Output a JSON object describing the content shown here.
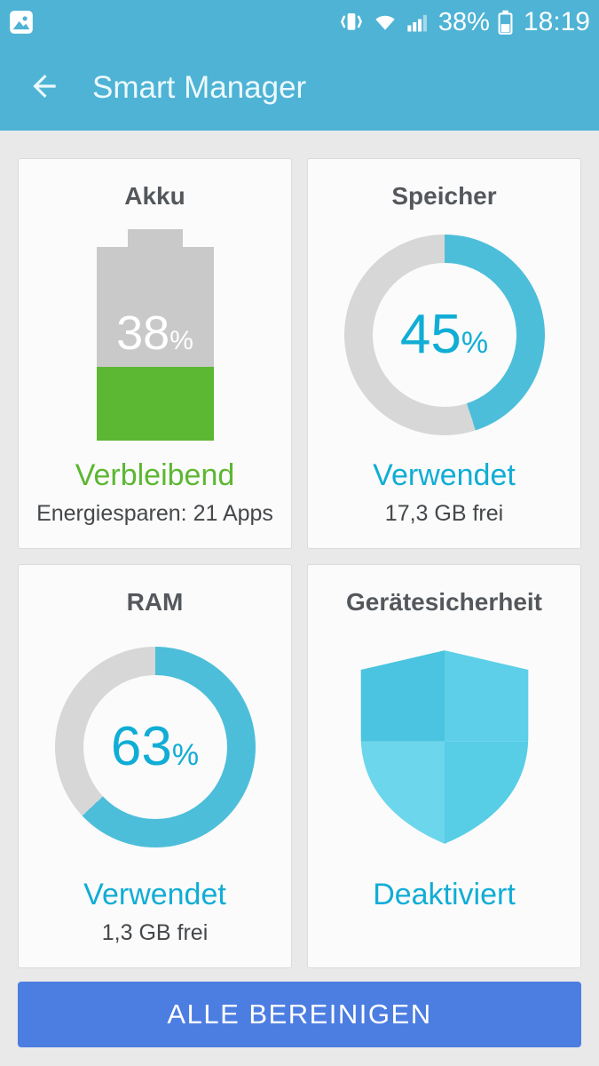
{
  "status_bar": {
    "left_icons": [
      "screenshot-icon"
    ],
    "right_icons": [
      "vibrate-icon",
      "wifi-icon",
      "signal-icon",
      "battery-icon"
    ],
    "battery_percent": "38%",
    "time": "18:19"
  },
  "app_bar": {
    "back_icon": "arrow-left-icon",
    "title": "Smart Manager"
  },
  "cards": {
    "battery": {
      "title": "Akku",
      "percent": 38,
      "unit": "%",
      "status": "Verbleibend",
      "detail": "Energiesparen: 21 Apps"
    },
    "storage": {
      "title": "Speicher",
      "percent": 45,
      "unit": "%",
      "status": "Verwendet",
      "detail": "17,3 GB frei"
    },
    "ram": {
      "title": "RAM",
      "percent": 63,
      "unit": "%",
      "status": "Verwendet",
      "detail": "1,3 GB frei"
    },
    "security": {
      "title": "Gerätesicherheit",
      "shield_icon": "shield-icon",
      "status": "Deaktiviert",
      "detail": ""
    }
  },
  "footer": {
    "clean_all": "ALLE BEREINIGEN"
  },
  "colors": {
    "header_blue": "#4eb3d5",
    "button_blue": "#4c7de1",
    "green": "#5cb732",
    "ring_blue": "#4dbeda",
    "track_gray": "#d7d7d7",
    "accent_text": "#10add5",
    "battery_gray": "#c9c9c9"
  }
}
